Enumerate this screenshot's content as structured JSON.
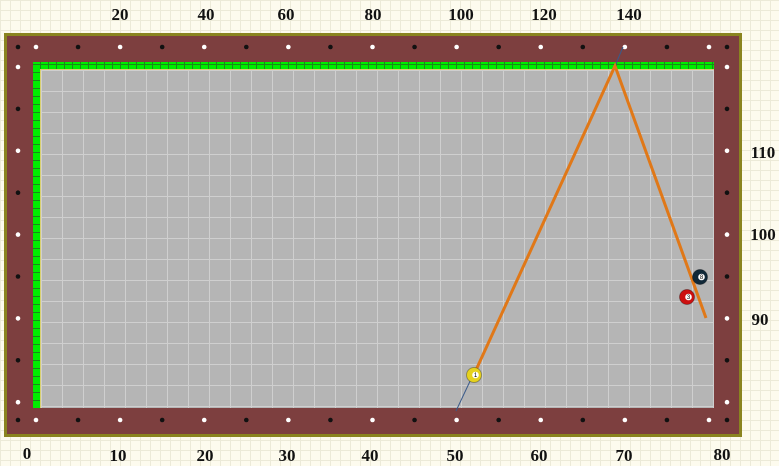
{
  "top_axis_labels": [
    "20",
    "40",
    "60",
    "80",
    "100",
    "120",
    "140"
  ],
  "bottom_axis_labels": [
    "0",
    "10",
    "20",
    "30",
    "40",
    "50",
    "60",
    "70",
    "80"
  ],
  "right_axis_labels": [
    "110",
    "100",
    "90"
  ],
  "balls": [
    {
      "number": "1",
      "color": "#e6d21e",
      "name": "cue-ball-1"
    },
    {
      "number": "8",
      "color": "#102838",
      "name": "ball-8"
    },
    {
      "number": "3",
      "color": "#cc1010",
      "name": "ball-3"
    }
  ],
  "colors": {
    "rail": "#7d3f3f",
    "cushion": "#00ee00",
    "felt": "#b5b5b5",
    "shot_path": "#e07818",
    "aim_line": "#3a5a8a"
  }
}
